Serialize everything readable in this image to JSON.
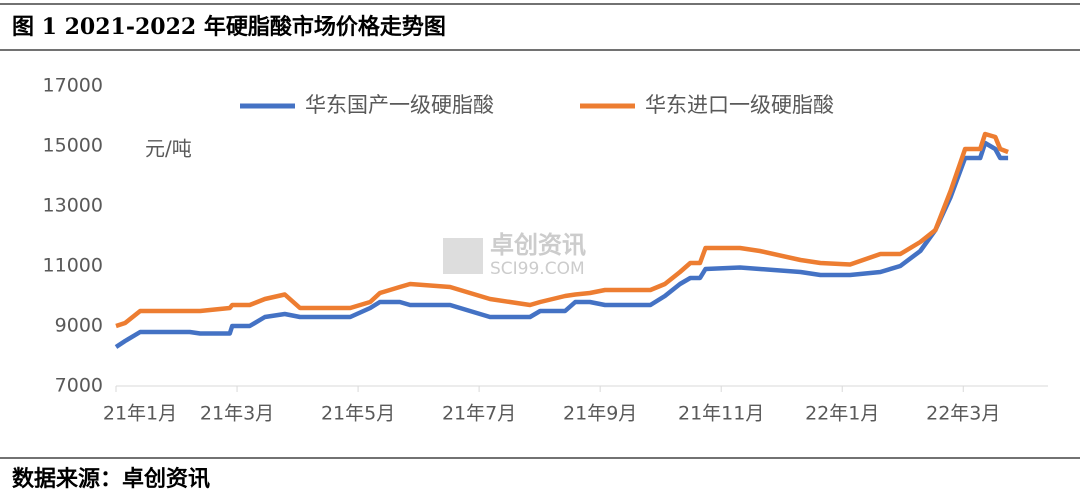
{
  "figure_title": "图 1   2021-2022 年硬脂酸市场价格走势图",
  "source": "数据来源：卓创资讯",
  "watermark": {
    "name": "卓创资讯",
    "site": "SCI99.COM"
  },
  "chart_data": {
    "type": "line",
    "y_label": "元/吨",
    "x": [
      0,
      0.15,
      0.4,
      1.22,
      1.39,
      1.88,
      1.92,
      2.21,
      2.46,
      2.79,
      3.04,
      3.87,
      4.2,
      4.36,
      4.69,
      4.86,
      5.52,
      5.85,
      6.18,
      6.84,
      7.01,
      7.42,
      7.59,
      7.83,
      8.08,
      8.83,
      9.07,
      9.32,
      9.49,
      9.65,
      9.74,
      10.31,
      10.64,
      11.31,
      11.64,
      12.13,
      12.63,
      12.96,
      13.29,
      13.54,
      13.79,
      14.03,
      14.28,
      14.36,
      14.53,
      14.61,
      14.74
    ],
    "series": [
      {
        "name": "华东国产一级硬脂酸",
        "color": "#4472c4",
        "values": [
          8300,
          8500,
          8800,
          8800,
          8750,
          8750,
          9000,
          9000,
          9300,
          9400,
          9300,
          9300,
          9600,
          9800,
          9800,
          9700,
          9700,
          9500,
          9300,
          9300,
          9500,
          9500,
          9800,
          9800,
          9700,
          9700,
          10000,
          10400,
          10600,
          10600,
          10900,
          10950,
          10900,
          10800,
          10700,
          10700,
          10800,
          11000,
          11500,
          12200,
          13300,
          14600,
          14600,
          15100,
          14900,
          14600,
          14600
        ]
      },
      {
        "name": "华东进口一级硬脂酸",
        "color": "#ed7d31",
        "values": [
          9000,
          9100,
          9500,
          9500,
          9500,
          9600,
          9700,
          9700,
          9900,
          10050,
          9600,
          9600,
          9800,
          10100,
          10300,
          10400,
          10300,
          10100,
          9900,
          9700,
          9800,
          10000,
          10050,
          10100,
          10200,
          10200,
          10400,
          10800,
          11100,
          11100,
          11600,
          11600,
          11500,
          11200,
          11100,
          11050,
          11400,
          11400,
          11800,
          12200,
          13500,
          14900,
          14900,
          15400,
          15300,
          14900,
          14800
        ]
      }
    ],
    "xlim": [
      0,
      15.4
    ],
    "xticks": [
      {
        "value": 0,
        "label": "21年1月"
      },
      {
        "value": 2,
        "label": "21年3月"
      },
      {
        "value": 4,
        "label": "21年5月"
      },
      {
        "value": 6,
        "label": "21年7月"
      },
      {
        "value": 8,
        "label": "21年9月"
      },
      {
        "value": 10,
        "label": "21年11月"
      },
      {
        "value": 12,
        "label": "22年1月"
      },
      {
        "value": 14,
        "label": "22年3月"
      }
    ],
    "ylim": [
      7000,
      17000
    ],
    "yticks": [
      7000,
      9000,
      11000,
      13000,
      15000,
      17000
    ],
    "grid": false
  }
}
